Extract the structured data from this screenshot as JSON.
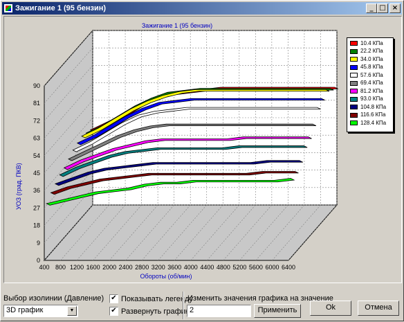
{
  "window": {
    "title": "Зажигание 1 (95 бензин)",
    "buttons": {
      "minimize": "_",
      "maximize": "□",
      "close": "×"
    }
  },
  "chart_data": {
    "type": "line",
    "title": "Зажигание 1 (95 бензин)",
    "xlabel": "Обороты (об/мин)",
    "ylabel": "УОЗ (град. ПКВ)",
    "x": [
      400,
      800,
      1200,
      1600,
      2000,
      2400,
      2800,
      3200,
      3600,
      4000,
      4400,
      4800,
      5200,
      5600,
      6000,
      6400
    ],
    "x_ticks": [
      "400",
      "800",
      "1200",
      "1600",
      "2000",
      "2400",
      "2800",
      "3200",
      "3600",
      "4000",
      "4400",
      "4800",
      "5200",
      "5600",
      "6000",
      "6400"
    ],
    "y_ticks": [
      "0",
      "9",
      "18",
      "27",
      "36",
      "45",
      "54",
      "63",
      "72",
      "81",
      "90"
    ],
    "ylim": [
      0,
      90
    ],
    "grid": true,
    "legend_position": "top-right",
    "series": [
      {
        "name": "10.4 КПа",
        "color": "#ff0000",
        "values": [
          40,
          44,
          48,
          53,
          57,
          59,
          60,
          61,
          62,
          62,
          62,
          62,
          62,
          62,
          62,
          62
        ]
      },
      {
        "name": "22.2 КПа",
        "color": "#008000",
        "values": [
          41,
          45,
          50,
          55,
          59,
          62,
          63,
          64,
          64,
          64,
          64,
          64,
          64,
          64,
          64,
          64
        ]
      },
      {
        "name": "34.0 КПа",
        "color": "#ffff00",
        "values": [
          42,
          46,
          51,
          56,
          60,
          63,
          65,
          66,
          66,
          66,
          66,
          66,
          66,
          66,
          66,
          66
        ]
      },
      {
        "name": "45.8 КПа",
        "color": "#0000ff",
        "values": [
          41,
          45,
          50,
          55,
          59,
          62,
          63,
          64,
          64,
          64,
          64,
          64,
          64,
          64,
          64,
          64
        ]
      },
      {
        "name": "57.6 КПа",
        "color": "#ffffff",
        "values": [
          40,
          44,
          49,
          54,
          58,
          60,
          61,
          62,
          62,
          62,
          62,
          62,
          62,
          62,
          62,
          62
        ]
      },
      {
        "name": "69.4 КПа",
        "color": "#808080",
        "values": [
          38,
          42,
          46,
          50,
          53,
          55,
          56,
          56,
          56,
          56,
          56,
          56,
          56,
          56,
          56,
          56
        ]
      },
      {
        "name": "81.2 КПа",
        "color": "#ff00ff",
        "values": [
          36,
          40,
          43,
          46,
          48,
          50,
          51,
          51,
          51,
          51,
          51,
          52,
          52,
          52,
          52,
          52
        ]
      },
      {
        "name": "93.0 КПа",
        "color": "#008080",
        "values": [
          35,
          39,
          42,
          45,
          47,
          48,
          49,
          49,
          49,
          49,
          49,
          50,
          50,
          50,
          50,
          50
        ]
      },
      {
        "name": "104.8 КПа",
        "color": "#000080",
        "values": [
          33,
          36,
          39,
          41,
          42,
          43,
          44,
          44,
          44,
          44,
          44,
          44,
          44,
          45,
          45,
          45
        ]
      },
      {
        "name": "116.6 КПа",
        "color": "#800000",
        "values": [
          31,
          34,
          36,
          38,
          39,
          40,
          41,
          41,
          41,
          41,
          41,
          41,
          41,
          42,
          42,
          42
        ]
      },
      {
        "name": "128.4 КПа",
        "color": "#00ff00",
        "values": [
          28,
          30,
          32,
          34,
          35,
          36,
          38,
          39,
          39,
          40,
          40,
          40,
          40,
          40,
          40,
          41
        ]
      }
    ]
  },
  "controls": {
    "isoline_label": "Выбор изолинии (Давление)",
    "isoline_value": "3D график",
    "show_legend_label": "Показывать легенду",
    "show_legend_checked": true,
    "expand_chart_label": "Развернуть график",
    "expand_chart_checked": true,
    "change_value_label": "Изменить значения графика на значение",
    "change_value": "2",
    "apply_label": "Применить",
    "ok_label": "Ok",
    "cancel_label": "Отмена"
  }
}
